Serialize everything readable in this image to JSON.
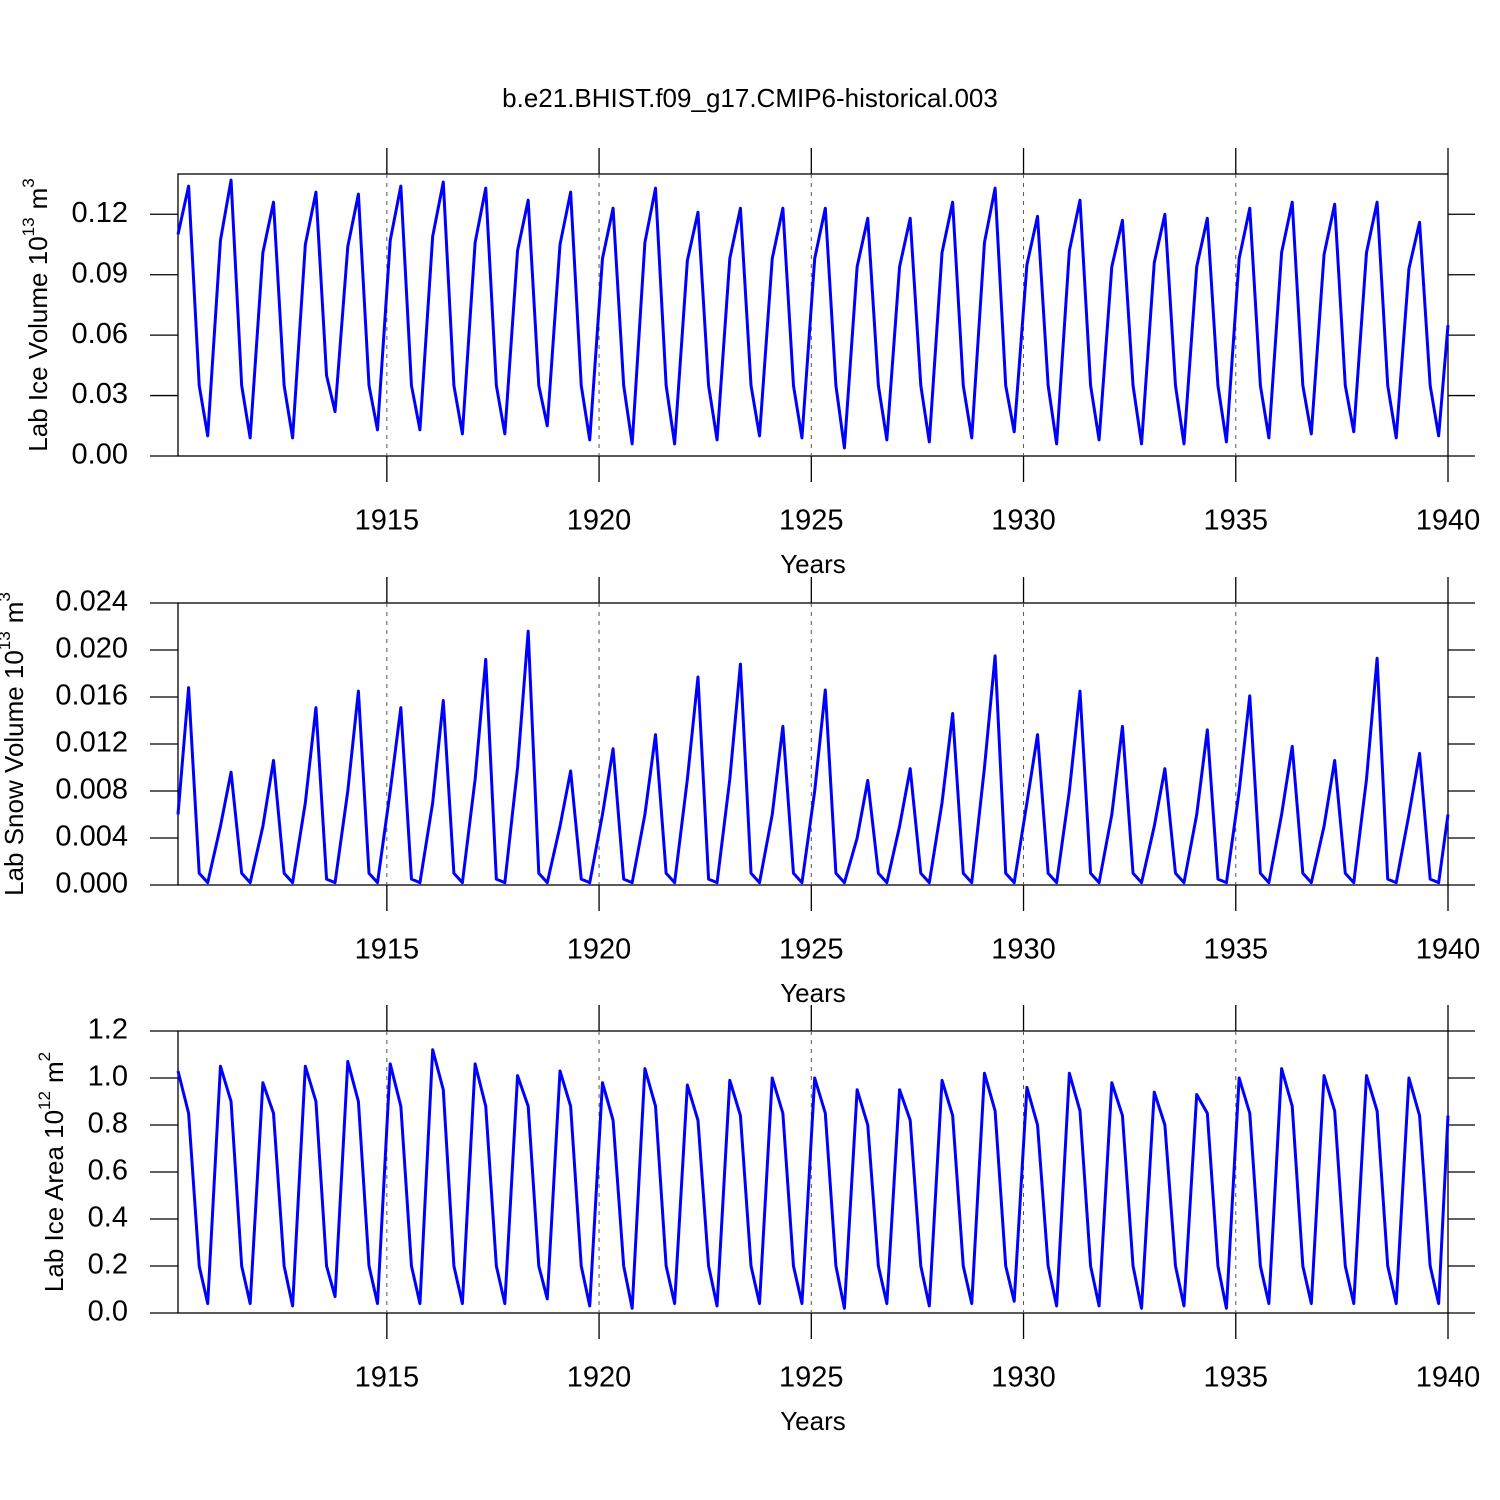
{
  "title": "b.e21.BHIST.f09_g17.CMIP6-historical.003",
  "chart_data": [
    {
      "type": "line",
      "xlabel": "Years",
      "ylabel": {
        "text": "Lab Ice Volume 10",
        "exponent": "13",
        "unit": "m",
        "unit_exponent": "3"
      },
      "color": "#0000ff",
      "grid": true,
      "xlim": [
        1910.08,
        1940
      ],
      "xticks": [
        1915,
        1920,
        1925,
        1930,
        1935,
        1940
      ],
      "ylim": [
        0,
        0.14
      ],
      "yticks": [
        {
          "value": 0,
          "label": "0.00"
        },
        0.03,
        0.06,
        0.09,
        0.12
      ],
      "x": [
        1910.08,
        1910.33,
        1910.58,
        1910.78,
        1911.08,
        1911.33,
        1911.58,
        1911.78,
        1912.08,
        1912.33,
        1912.58,
        1912.78,
        1913.08,
        1913.33,
        1913.58,
        1913.78,
        1914.08,
        1914.33,
        1914.58,
        1914.78,
        1915.08,
        1915.33,
        1915.58,
        1915.78,
        1916.08,
        1916.33,
        1916.58,
        1916.78,
        1917.08,
        1917.33,
        1917.58,
        1917.78,
        1918.08,
        1918.33,
        1918.58,
        1918.78,
        1919.08,
        1919.33,
        1919.58,
        1919.78,
        1920.08,
        1920.33,
        1920.58,
        1920.78,
        1921.08,
        1921.33,
        1921.58,
        1921.78,
        1922.08,
        1922.33,
        1922.58,
        1922.78,
        1923.08,
        1923.33,
        1923.58,
        1923.78,
        1924.08,
        1924.33,
        1924.58,
        1924.78,
        1925.08,
        1925.33,
        1925.58,
        1925.78,
        1926.08,
        1926.33,
        1926.58,
        1926.78,
        1927.08,
        1927.33,
        1927.58,
        1927.78,
        1928.08,
        1928.33,
        1928.58,
        1928.78,
        1929.08,
        1929.33,
        1929.58,
        1929.78,
        1930.08,
        1930.33,
        1930.58,
        1930.78,
        1931.08,
        1931.33,
        1931.58,
        1931.78,
        1932.08,
        1932.33,
        1932.58,
        1932.78,
        1933.08,
        1933.33,
        1933.58,
        1933.78,
        1934.08,
        1934.33,
        1934.58,
        1934.78,
        1935.08,
        1935.33,
        1935.58,
        1935.78,
        1936.08,
        1936.33,
        1936.58,
        1936.78,
        1937.08,
        1937.33,
        1937.58,
        1937.78,
        1938.08,
        1938.33,
        1938.58,
        1938.78,
        1939.08,
        1939.33,
        1939.58,
        1939.78,
        1940
      ],
      "values": [
        0.11,
        0.134,
        0.035,
        0.01,
        0.107,
        0.137,
        0.035,
        0.009,
        0.101,
        0.126,
        0.035,
        0.009,
        0.105,
        0.131,
        0.04,
        0.022,
        0.104,
        0.13,
        0.035,
        0.013,
        0.107,
        0.134,
        0.035,
        0.013,
        0.109,
        0.136,
        0.035,
        0.011,
        0.106,
        0.133,
        0.035,
        0.011,
        0.102,
        0.127,
        0.035,
        0.015,
        0.105,
        0.131,
        0.035,
        0.008,
        0.098,
        0.123,
        0.035,
        0.006,
        0.106,
        0.133,
        0.035,
        0.006,
        0.097,
        0.121,
        0.035,
        0.008,
        0.098,
        0.123,
        0.035,
        0.01,
        0.098,
        0.123,
        0.035,
        0.009,
        0.098,
        0.123,
        0.035,
        0.004,
        0.094,
        0.118,
        0.035,
        0.008,
        0.094,
        0.118,
        0.035,
        0.007,
        0.101,
        0.126,
        0.035,
        0.009,
        0.106,
        0.133,
        0.035,
        0.012,
        0.095,
        0.119,
        0.035,
        0.006,
        0.102,
        0.127,
        0.035,
        0.008,
        0.094,
        0.117,
        0.035,
        0.006,
        0.096,
        0.12,
        0.035,
        0.006,
        0.094,
        0.118,
        0.035,
        0.007,
        0.098,
        0.123,
        0.035,
        0.009,
        0.101,
        0.126,
        0.035,
        0.011,
        0.1,
        0.125,
        0.035,
        0.012,
        0.101,
        0.126,
        0.035,
        0.009,
        0.093,
        0.116,
        0.035,
        0.01,
        0.065
      ]
    },
    {
      "type": "line",
      "xlabel": "Years",
      "ylabel": {
        "text": "Lab Snow Volume 10",
        "exponent": "13",
        "unit": "m",
        "unit_exponent": "3"
      },
      "color": "#0000ff",
      "grid": true,
      "xlim": [
        1910.08,
        1940
      ],
      "xticks": [
        1915,
        1920,
        1925,
        1930,
        1935,
        1940
      ],
      "ylim": [
        0,
        0.024
      ],
      "yticks": [
        {
          "value": 0,
          "label": "0.000"
        },
        0.004,
        0.008,
        0.012,
        0.016,
        {
          "value": 0.02,
          "label": "0.020"
        },
        0.024
      ],
      "x": [
        1910.08,
        1910.33,
        1910.58,
        1910.78,
        1911.08,
        1911.33,
        1911.58,
        1911.78,
        1912.08,
        1912.33,
        1912.58,
        1912.78,
        1913.08,
        1913.33,
        1913.58,
        1913.78,
        1914.08,
        1914.33,
        1914.58,
        1914.78,
        1915.08,
        1915.33,
        1915.58,
        1915.78,
        1916.08,
        1916.33,
        1916.58,
        1916.78,
        1917.08,
        1917.33,
        1917.58,
        1917.78,
        1918.08,
        1918.33,
        1918.58,
        1918.78,
        1919.08,
        1919.33,
        1919.58,
        1919.78,
        1920.08,
        1920.33,
        1920.58,
        1920.78,
        1921.08,
        1921.33,
        1921.58,
        1921.78,
        1922.08,
        1922.33,
        1922.58,
        1922.78,
        1923.08,
        1923.33,
        1923.58,
        1923.78,
        1924.08,
        1924.33,
        1924.58,
        1924.78,
        1925.08,
        1925.33,
        1925.58,
        1925.78,
        1926.08,
        1926.33,
        1926.58,
        1926.78,
        1927.08,
        1927.33,
        1927.58,
        1927.78,
        1928.08,
        1928.33,
        1928.58,
        1928.78,
        1929.08,
        1929.33,
        1929.58,
        1929.78,
        1930.08,
        1930.33,
        1930.58,
        1930.78,
        1931.08,
        1931.33,
        1931.58,
        1931.78,
        1932.08,
        1932.33,
        1932.58,
        1932.78,
        1933.08,
        1933.33,
        1933.58,
        1933.78,
        1934.08,
        1934.33,
        1934.58,
        1934.78,
        1935.08,
        1935.33,
        1935.58,
        1935.78,
        1936.08,
        1936.33,
        1936.58,
        1936.78,
        1937.08,
        1937.33,
        1937.58,
        1937.78,
        1938.08,
        1938.33,
        1938.58,
        1938.78,
        1939.08,
        1939.33,
        1939.58,
        1939.78,
        1940
      ],
      "values": [
        0.006,
        0.0168,
        0.001,
        0.0002,
        0.005,
        0.0096,
        0.001,
        0.0002,
        0.005,
        0.0106,
        0.001,
        0.0002,
        0.007,
        0.0151,
        0.0005,
        0.0002,
        0.008,
        0.0165,
        0.001,
        0.0002,
        0.008,
        0.0151,
        0.0005,
        0.0002,
        0.007,
        0.0157,
        0.001,
        0.0002,
        0.009,
        0.0192,
        0.0005,
        0.0002,
        0.01,
        0.0216,
        0.001,
        0.0002,
        0.005,
        0.0097,
        0.0005,
        0.0002,
        0.006,
        0.0116,
        0.0005,
        0.0002,
        0.006,
        0.0128,
        0.001,
        0.0002,
        0.009,
        0.0177,
        0.0005,
        0.0002,
        0.009,
        0.0188,
        0.001,
        0.0002,
        0.006,
        0.0135,
        0.001,
        0.0002,
        0.008,
        0.0166,
        0.001,
        0.0002,
        0.004,
        0.0089,
        0.001,
        0.0002,
        0.005,
        0.0099,
        0.001,
        0.0002,
        0.007,
        0.0146,
        0.001,
        0.0002,
        0.01,
        0.0195,
        0.001,
        0.0002,
        0.007,
        0.0128,
        0.001,
        0.0002,
        0.008,
        0.0165,
        0.001,
        0.0002,
        0.006,
        0.0135,
        0.001,
        0.0002,
        0.005,
        0.0099,
        0.001,
        0.0002,
        0.006,
        0.0132,
        0.0005,
        0.0002,
        0.008,
        0.0161,
        0.001,
        0.0002,
        0.006,
        0.0118,
        0.001,
        0.0002,
        0.005,
        0.0106,
        0.001,
        0.0002,
        0.009,
        0.0193,
        0.0005,
        0.0002,
        0.006,
        0.0112,
        0.0005,
        0.0002,
        0.006
      ]
    },
    {
      "type": "line",
      "xlabel": "Years",
      "ylabel": {
        "text": "Lab Ice Area 10",
        "exponent": "12",
        "unit": "m",
        "unit_exponent": "2"
      },
      "color": "#0000ff",
      "grid": true,
      "xlim": [
        1910.08,
        1940
      ],
      "xticks": [
        1915,
        1920,
        1925,
        1930,
        1935,
        1940
      ],
      "ylim": [
        0,
        1.2
      ],
      "yticks": [
        {
          "value": 0,
          "label": "0.0"
        },
        0.2,
        0.4,
        0.6,
        0.8,
        {
          "value": 1,
          "label": "1.0"
        },
        1.2
      ],
      "x": [
        1910.08,
        1910.33,
        1910.58,
        1910.78,
        1911.08,
        1911.33,
        1911.58,
        1911.78,
        1912.08,
        1912.33,
        1912.58,
        1912.78,
        1913.08,
        1913.33,
        1913.58,
        1913.78,
        1914.08,
        1914.33,
        1914.58,
        1914.78,
        1915.08,
        1915.33,
        1915.58,
        1915.78,
        1916.08,
        1916.33,
        1916.58,
        1916.78,
        1917.08,
        1917.33,
        1917.58,
        1917.78,
        1918.08,
        1918.33,
        1918.58,
        1918.78,
        1919.08,
        1919.33,
        1919.58,
        1919.78,
        1920.08,
        1920.33,
        1920.58,
        1920.78,
        1921.08,
        1921.33,
        1921.58,
        1921.78,
        1922.08,
        1922.33,
        1922.58,
        1922.78,
        1923.08,
        1923.33,
        1923.58,
        1923.78,
        1924.08,
        1924.33,
        1924.58,
        1924.78,
        1925.08,
        1925.33,
        1925.58,
        1925.78,
        1926.08,
        1926.33,
        1926.58,
        1926.78,
        1927.08,
        1927.33,
        1927.58,
        1927.78,
        1928.08,
        1928.33,
        1928.58,
        1928.78,
        1929.08,
        1929.33,
        1929.58,
        1929.78,
        1930.08,
        1930.33,
        1930.58,
        1930.78,
        1931.08,
        1931.33,
        1931.58,
        1931.78,
        1932.08,
        1932.33,
        1932.58,
        1932.78,
        1933.08,
        1933.33,
        1933.58,
        1933.78,
        1934.08,
        1934.33,
        1934.58,
        1934.78,
        1935.08,
        1935.33,
        1935.58,
        1935.78,
        1936.08,
        1936.33,
        1936.58,
        1936.78,
        1937.08,
        1937.33,
        1937.58,
        1937.78,
        1938.08,
        1938.33,
        1938.58,
        1938.78,
        1939.08,
        1939.33,
        1939.58,
        1939.78,
        1940
      ],
      "values": [
        1.03,
        0.85,
        0.2,
        0.04,
        1.05,
        0.9,
        0.2,
        0.04,
        0.98,
        0.85,
        0.2,
        0.03,
        1.05,
        0.9,
        0.2,
        0.07,
        1.07,
        0.9,
        0.2,
        0.04,
        1.06,
        0.88,
        0.2,
        0.04,
        1.12,
        0.95,
        0.2,
        0.04,
        1.06,
        0.88,
        0.2,
        0.04,
        1.01,
        0.88,
        0.2,
        0.06,
        1.03,
        0.88,
        0.2,
        0.03,
        0.98,
        0.82,
        0.2,
        0.02,
        1.04,
        0.88,
        0.2,
        0.04,
        0.97,
        0.82,
        0.2,
        0.03,
        0.99,
        0.84,
        0.2,
        0.04,
        1.0,
        0.85,
        0.2,
        0.04,
        1.0,
        0.85,
        0.2,
        0.02,
        0.95,
        0.8,
        0.2,
        0.04,
        0.95,
        0.82,
        0.2,
        0.03,
        0.99,
        0.84,
        0.2,
        0.04,
        1.02,
        0.86,
        0.2,
        0.05,
        0.96,
        0.8,
        0.2,
        0.03,
        1.02,
        0.86,
        0.2,
        0.03,
        0.98,
        0.84,
        0.2,
        0.02,
        0.94,
        0.8,
        0.2,
        0.03,
        0.93,
        0.85,
        0.2,
        0.02,
        1.0,
        0.85,
        0.2,
        0.04,
        1.04,
        0.88,
        0.2,
        0.04,
        1.01,
        0.86,
        0.2,
        0.04,
        1.01,
        0.86,
        0.2,
        0.04,
        1.0,
        0.84,
        0.2,
        0.04,
        0.84
      ]
    }
  ]
}
